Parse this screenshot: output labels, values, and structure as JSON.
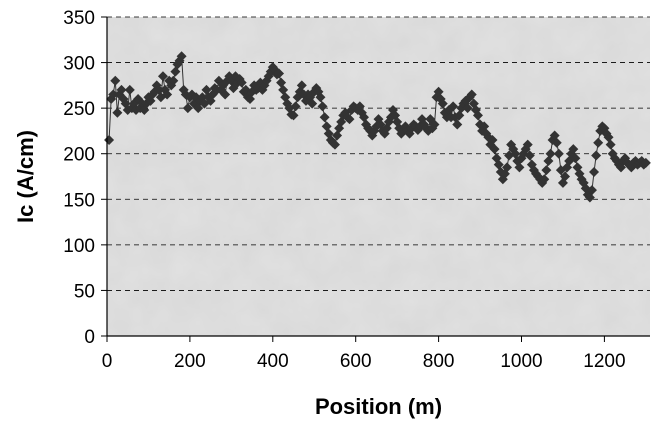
{
  "chart_data": {
    "type": "scatter",
    "title": "",
    "xlabel": "Position (m)",
    "ylabel": "Ic (A/cm)",
    "xlim": [
      0,
      1310
    ],
    "ylim": [
      0,
      350
    ],
    "x_ticks": [
      0,
      200,
      400,
      600,
      800,
      1000,
      1200
    ],
    "y_ticks": [
      0,
      50,
      100,
      150,
      200,
      250,
      300,
      350
    ],
    "grid": "horizontal-dashed",
    "legend": "none",
    "colors": {
      "plot_background": "#d8d8d8",
      "marker": "#333333",
      "line": "#333333",
      "grid": "#000000"
    },
    "series": [
      {
        "marker": "diamond",
        "connected": true,
        "points": [
          [
            5,
            215
          ],
          [
            10,
            260
          ],
          [
            15,
            265
          ],
          [
            20,
            280
          ],
          [
            25,
            245
          ],
          [
            30,
            265
          ],
          [
            35,
            270
          ],
          [
            40,
            260
          ],
          [
            45,
            255
          ],
          [
            50,
            248
          ],
          [
            55,
            270
          ],
          [
            60,
            250
          ],
          [
            65,
            255
          ],
          [
            70,
            248
          ],
          [
            75,
            260
          ],
          [
            80,
            250
          ],
          [
            85,
            255
          ],
          [
            90,
            248
          ],
          [
            95,
            255
          ],
          [
            100,
            262
          ],
          [
            105,
            258
          ],
          [
            110,
            265
          ],
          [
            115,
            268
          ],
          [
            120,
            275
          ],
          [
            125,
            270
          ],
          [
            130,
            262
          ],
          [
            135,
            285
          ],
          [
            140,
            270
          ],
          [
            145,
            265
          ],
          [
            150,
            280
          ],
          [
            155,
            275
          ],
          [
            160,
            280
          ],
          [
            165,
            290
          ],
          [
            170,
            298
          ],
          [
            175,
            302
          ],
          [
            180,
            307
          ],
          [
            185,
            270
          ],
          [
            190,
            265
          ],
          [
            195,
            250
          ],
          [
            200,
            262
          ],
          [
            205,
            265
          ],
          [
            210,
            255
          ],
          [
            215,
            262
          ],
          [
            220,
            250
          ],
          [
            225,
            258
          ],
          [
            230,
            262
          ],
          [
            235,
            255
          ],
          [
            240,
            270
          ],
          [
            245,
            262
          ],
          [
            250,
            258
          ],
          [
            255,
            265
          ],
          [
            260,
            272
          ],
          [
            265,
            270
          ],
          [
            270,
            280
          ],
          [
            275,
            270
          ],
          [
            280,
            275
          ],
          [
            285,
            265
          ],
          [
            290,
            280
          ],
          [
            295,
            285
          ],
          [
            300,
            280
          ],
          [
            305,
            272
          ],
          [
            310,
            285
          ],
          [
            315,
            278
          ],
          [
            320,
            282
          ],
          [
            325,
            278
          ],
          [
            330,
            268
          ],
          [
            335,
            270
          ],
          [
            340,
            262
          ],
          [
            345,
            260
          ],
          [
            350,
            268
          ],
          [
            355,
            275
          ],
          [
            360,
            270
          ],
          [
            365,
            272
          ],
          [
            370,
            278
          ],
          [
            375,
            270
          ],
          [
            380,
            275
          ],
          [
            385,
            280
          ],
          [
            390,
            285
          ],
          [
            395,
            290
          ],
          [
            400,
            295
          ],
          [
            405,
            292
          ],
          [
            410,
            287
          ],
          [
            415,
            288
          ],
          [
            420,
            278
          ],
          [
            425,
            270
          ],
          [
            430,
            262
          ],
          [
            435,
            255
          ],
          [
            440,
            250
          ],
          [
            445,
            243
          ],
          [
            450,
            242
          ],
          [
            455,
            252
          ],
          [
            460,
            262
          ],
          [
            465,
            268
          ],
          [
            470,
            275
          ],
          [
            475,
            265
          ],
          [
            480,
            258
          ],
          [
            485,
            265
          ],
          [
            490,
            262
          ],
          [
            495,
            255
          ],
          [
            500,
            268
          ],
          [
            505,
            272
          ],
          [
            510,
            268
          ],
          [
            515,
            262
          ],
          [
            520,
            252
          ],
          [
            525,
            240
          ],
          [
            530,
            230
          ],
          [
            535,
            222
          ],
          [
            540,
            215
          ],
          [
            545,
            212
          ],
          [
            550,
            210
          ],
          [
            555,
            220
          ],
          [
            560,
            228
          ],
          [
            565,
            235
          ],
          [
            570,
            242
          ],
          [
            575,
            245
          ],
          [
            580,
            240
          ],
          [
            585,
            238
          ],
          [
            590,
            248
          ],
          [
            595,
            252
          ],
          [
            600,
            250
          ],
          [
            605,
            248
          ],
          [
            610,
            252
          ],
          [
            615,
            245
          ],
          [
            620,
            240
          ],
          [
            625,
            232
          ],
          [
            630,
            228
          ],
          [
            635,
            225
          ],
          [
            640,
            220
          ],
          [
            645,
            225
          ],
          [
            650,
            230
          ],
          [
            655,
            238
          ],
          [
            660,
            232
          ],
          [
            665,
            225
          ],
          [
            670,
            222
          ],
          [
            675,
            228
          ],
          [
            680,
            235
          ],
          [
            685,
            240
          ],
          [
            690,
            248
          ],
          [
            695,
            242
          ],
          [
            700,
            235
          ],
          [
            705,
            228
          ],
          [
            710,
            222
          ],
          [
            715,
            225
          ],
          [
            720,
            230
          ],
          [
            725,
            225
          ],
          [
            730,
            222
          ],
          [
            735,
            228
          ],
          [
            740,
            232
          ],
          [
            745,
            230
          ],
          [
            750,
            226
          ],
          [
            755,
            230
          ],
          [
            760,
            238
          ],
          [
            765,
            232
          ],
          [
            770,
            228
          ],
          [
            775,
            225
          ],
          [
            780,
            238
          ],
          [
            785,
            228
          ],
          [
            790,
            232
          ],
          [
            795,
            262
          ],
          [
            800,
            268
          ],
          [
            805,
            260
          ],
          [
            810,
            255
          ],
          [
            815,
            245
          ],
          [
            820,
            240
          ],
          [
            825,
            248
          ],
          [
            830,
            240
          ],
          [
            835,
            252
          ],
          [
            840,
            240
          ],
          [
            845,
            232
          ],
          [
            850,
            242
          ],
          [
            855,
            250
          ],
          [
            860,
            255
          ],
          [
            865,
            258
          ],
          [
            870,
            250
          ],
          [
            875,
            262
          ],
          [
            880,
            265
          ],
          [
            885,
            255
          ],
          [
            890,
            248
          ],
          [
            895,
            242
          ],
          [
            900,
            232
          ],
          [
            905,
            225
          ],
          [
            910,
            230
          ],
          [
            915,
            222
          ],
          [
            920,
            218
          ],
          [
            925,
            210
          ],
          [
            930,
            215
          ],
          [
            935,
            205
          ],
          [
            940,
            195
          ],
          [
            945,
            188
          ],
          [
            950,
            180
          ],
          [
            955,
            172
          ],
          [
            960,
            178
          ],
          [
            965,
            185
          ],
          [
            970,
            198
          ],
          [
            975,
            210
          ],
          [
            980,
            205
          ],
          [
            985,
            200
          ],
          [
            990,
            192
          ],
          [
            995,
            185
          ],
          [
            1000,
            195
          ],
          [
            1005,
            200
          ],
          [
            1010,
            205
          ],
          [
            1015,
            210
          ],
          [
            1020,
            198
          ],
          [
            1025,
            188
          ],
          [
            1030,
            182
          ],
          [
            1035,
            178
          ],
          [
            1040,
            175
          ],
          [
            1045,
            172
          ],
          [
            1050,
            168
          ],
          [
            1055,
            172
          ],
          [
            1060,
            182
          ],
          [
            1065,
            192
          ],
          [
            1070,
            200
          ],
          [
            1075,
            215
          ],
          [
            1080,
            220
          ],
          [
            1085,
            212
          ],
          [
            1090,
            200
          ],
          [
            1095,
            182
          ],
          [
            1100,
            168
          ],
          [
            1105,
            175
          ],
          [
            1110,
            185
          ],
          [
            1115,
            192
          ],
          [
            1120,
            200
          ],
          [
            1125,
            205
          ],
          [
            1130,
            195
          ],
          [
            1135,
            185
          ],
          [
            1140,
            178
          ],
          [
            1145,
            172
          ],
          [
            1150,
            168
          ],
          [
            1155,
            162
          ],
          [
            1160,
            155
          ],
          [
            1165,
            152
          ],
          [
            1170,
            160
          ],
          [
            1175,
            180
          ],
          [
            1180,
            198
          ],
          [
            1185,
            212
          ],
          [
            1190,
            225
          ],
          [
            1195,
            230
          ],
          [
            1200,
            228
          ],
          [
            1205,
            222
          ],
          [
            1210,
            218
          ],
          [
            1215,
            210
          ],
          [
            1220,
            200
          ],
          [
            1225,
            195
          ],
          [
            1230,
            192
          ],
          [
            1235,
            188
          ],
          [
            1240,
            185
          ],
          [
            1245,
            192
          ],
          [
            1250,
            195
          ],
          [
            1255,
            190
          ],
          [
            1260,
            188
          ],
          [
            1265,
            185
          ],
          [
            1270,
            190
          ],
          [
            1275,
            192
          ],
          [
            1280,
            188
          ],
          [
            1285,
            190
          ],
          [
            1290,
            192
          ],
          [
            1295,
            188
          ],
          [
            1300,
            190
          ]
        ]
      }
    ]
  }
}
